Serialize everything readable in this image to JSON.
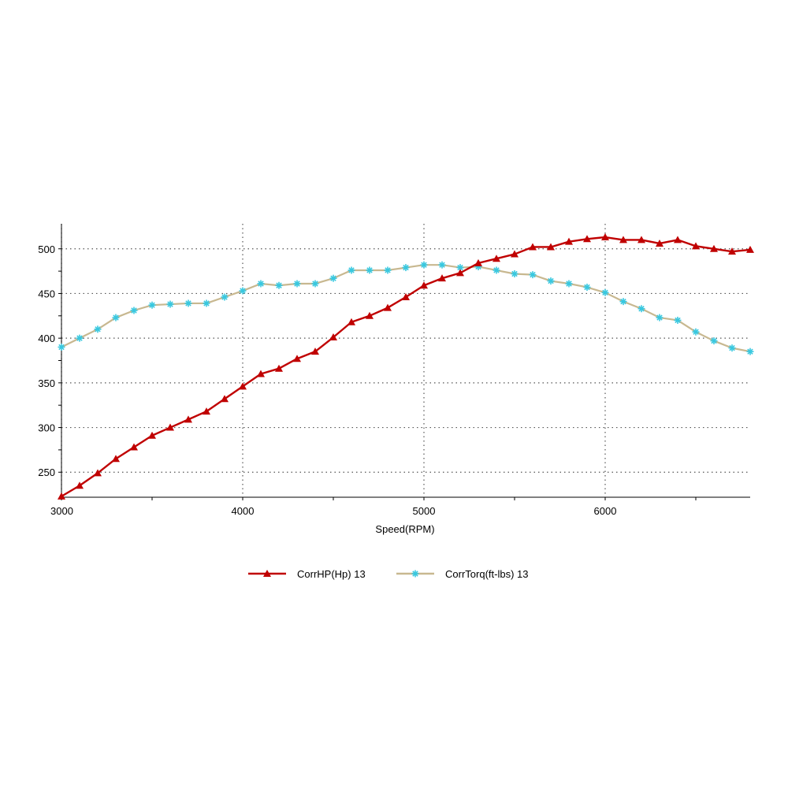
{
  "chart_data": {
    "type": "line",
    "title": "",
    "xlabel": "Speed(RPM)",
    "ylabel": "",
    "xlim": [
      3000,
      6800
    ],
    "ylim": [
      222,
      528
    ],
    "x_ticks": [
      3000,
      4000,
      5000,
      6000
    ],
    "y_ticks": [
      250,
      300,
      350,
      400,
      450,
      500
    ],
    "x_tick_labels": [
      "3000",
      "4000",
      "5000",
      "6000"
    ],
    "y_tick_labels": [
      "250",
      "300",
      "350",
      "400",
      "450",
      "500"
    ],
    "grid": true,
    "legend_position": "bottom",
    "x": [
      3000,
      3100,
      3200,
      3300,
      3400,
      3500,
      3600,
      3700,
      3800,
      3900,
      4000,
      4100,
      4200,
      4300,
      4400,
      4500,
      4600,
      4700,
      4800,
      4900,
      5000,
      5100,
      5200,
      5300,
      5400,
      5500,
      5600,
      5700,
      5800,
      5900,
      6000,
      6100,
      6200,
      6300,
      6400,
      6500,
      6600,
      6700,
      6800
    ],
    "series": [
      {
        "name": "CorrHP(Hp) 13",
        "color": "#c00000",
        "marker": "triangle",
        "values": [
          223,
          235,
          249,
          265,
          278,
          291,
          300,
          309,
          318,
          332,
          346,
          360,
          366,
          377,
          385,
          401,
          418,
          425,
          434,
          446,
          459,
          467,
          473,
          484,
          489,
          494,
          502,
          502,
          508,
          511,
          513,
          510,
          510,
          506,
          510,
          503,
          500,
          497,
          499
        ]
      },
      {
        "name": "CorrTorq(ft-lbs) 13",
        "color": "#c8b890",
        "marker_color": "#38c8e0",
        "marker": "star",
        "values": [
          390,
          400,
          410,
          423,
          431,
          437,
          438,
          439,
          439,
          446,
          453,
          461,
          459,
          461,
          461,
          467,
          476,
          476,
          476,
          479,
          482,
          482,
          479,
          480,
          476,
          472,
          471,
          464,
          461,
          457,
          451,
          441,
          433,
          423,
          420,
          407,
          397,
          389,
          385
        ]
      }
    ]
  }
}
